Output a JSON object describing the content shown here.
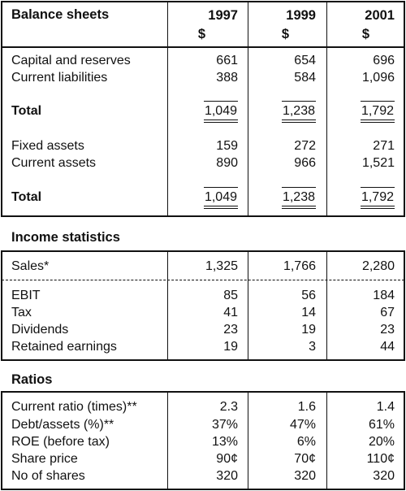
{
  "balance": {
    "title": "Balance sheets",
    "years": [
      "1997",
      "1999",
      "2001"
    ],
    "unit": "$",
    "rows": [
      {
        "label": "Capital and reserves",
        "values": [
          "661",
          "654",
          "696"
        ]
      },
      {
        "label": "Current liabilities",
        "values": [
          "388",
          "584",
          "1,096"
        ]
      },
      {
        "label": "Total",
        "values": [
          "1,049",
          "1,238",
          "1,792"
        ]
      },
      {
        "label": "Fixed assets",
        "values": [
          "159",
          "272",
          "271"
        ]
      },
      {
        "label": "Current assets",
        "values": [
          "890",
          "966",
          "1,521"
        ]
      },
      {
        "label": "Total",
        "values": [
          "1,049",
          "1,238",
          "1,792"
        ]
      }
    ]
  },
  "income": {
    "title": "Income statistics",
    "rows": [
      {
        "label": "Sales*",
        "values": [
          "1,325",
          "1,766",
          "2,280"
        ]
      },
      {
        "label": "EBIT",
        "values": [
          "85",
          "56",
          "184"
        ]
      },
      {
        "label": "Tax",
        "values": [
          "41",
          "14",
          "67"
        ]
      },
      {
        "label": "Dividends",
        "values": [
          "23",
          "19",
          "23"
        ]
      },
      {
        "label": "Retained earnings",
        "values": [
          "19",
          "3",
          "44"
        ]
      }
    ]
  },
  "ratios": {
    "title": "Ratios",
    "rows": [
      {
        "label": "Current ratio (times)**",
        "values": [
          "2.3",
          "1.6",
          "1.4"
        ]
      },
      {
        "label": "Debt/assets (%)**",
        "values": [
          "37%",
          "47%",
          "61%"
        ]
      },
      {
        "label": "ROE (before tax)",
        "values": [
          "13%",
          "6%",
          "20%"
        ]
      },
      {
        "label": "Share price",
        "values": [
          "90¢",
          "70¢",
          "110¢"
        ]
      },
      {
        "label": "No of shares",
        "values": [
          "320",
          "320",
          "320"
        ]
      }
    ]
  }
}
